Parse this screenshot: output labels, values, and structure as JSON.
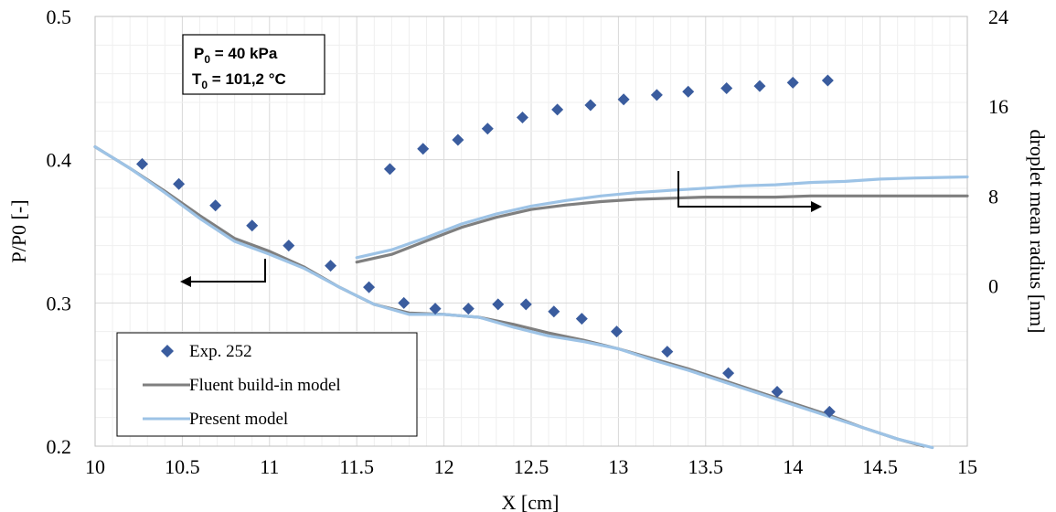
{
  "chart_data": {
    "type": "line",
    "xlabel": "X [cm]",
    "ylabel_left": "P/P0 [-]",
    "ylabel_right": "droplet mean radius [nm]",
    "xlim": [
      10,
      15
    ],
    "ylim_left": [
      0.2,
      0.5
    ],
    "ylim_right": [
      -14.3,
      24
    ],
    "x_ticks": [
      "10",
      "10.5",
      "11",
      "11.5",
      "12",
      "12.5",
      "13",
      "13.5",
      "14",
      "14.5",
      "15"
    ],
    "y_left_ticks": [
      "0.2",
      "0.3",
      "0.4",
      "0.5"
    ],
    "y_right_ticks": [
      "0",
      "8",
      "16",
      "24"
    ],
    "grid": true,
    "annotation": {
      "p0_sym": "P",
      "p0_sub": "0",
      "p0_val": " = 40 kPa",
      "t0_sym": "T",
      "t0_sub": "0",
      "t0_val": " = 101,2 °C"
    },
    "legend": {
      "placement": "bottom-left",
      "entries": [
        "Exp. 252",
        "Fluent build-in model",
        "Present model"
      ]
    },
    "colors": {
      "exp": "#3a5c9e",
      "fluent": "#7f7f7f",
      "present": "#9dc3e6",
      "grid_major": "#d9d9d9",
      "grid_minor": "#efefef"
    },
    "series": [
      {
        "name": "Exp. 252",
        "axis": "left",
        "kind": "scatter",
        "x": [
          10.27,
          10.48,
          10.69,
          10.9,
          11.11,
          11.35,
          11.57,
          11.77,
          11.95,
          12.14,
          12.31,
          12.47,
          12.63,
          12.79,
          12.99,
          13.28,
          13.63,
          13.91,
          14.21
        ],
        "y": [
          0.397,
          0.383,
          0.368,
          0.354,
          0.34,
          0.326,
          0.311,
          0.3,
          0.296,
          0.296,
          0.299,
          0.299,
          0.294,
          0.289,
          0.28,
          0.266,
          0.251,
          0.238,
          0.224
        ]
      },
      {
        "name": "Exp. 252",
        "axis": "right",
        "kind": "scatter",
        "x": [
          11.69,
          11.88,
          12.08,
          12.25,
          12.45,
          12.65,
          12.84,
          13.03,
          13.22,
          13.4,
          13.62,
          13.81,
          14.0,
          14.2
        ],
        "y": [
          10.4,
          12.2,
          13.0,
          14.0,
          15.0,
          15.7,
          16.1,
          16.6,
          17.0,
          17.3,
          17.6,
          17.8,
          18.1,
          18.3
        ]
      },
      {
        "name": "Fluent build-in model",
        "axis": "left",
        "kind": "line",
        "x": [
          10.0,
          10.2,
          10.4,
          10.6,
          10.8,
          11.0,
          11.2,
          11.4,
          11.6,
          11.8,
          12.0,
          12.2,
          12.4,
          12.6,
          12.8,
          13.0,
          13.2,
          13.4,
          13.6,
          13.8,
          14.0,
          14.2,
          14.4,
          14.6,
          14.75
        ],
        "y": [
          0.409,
          0.394,
          0.378,
          0.361,
          0.345,
          0.336,
          0.325,
          0.311,
          0.299,
          0.293,
          0.292,
          0.29,
          0.285,
          0.279,
          0.274,
          0.268,
          0.261,
          0.254,
          0.246,
          0.238,
          0.23,
          0.222,
          0.213,
          0.205,
          0.2
        ]
      },
      {
        "name": "Fluent build-in model",
        "axis": "right",
        "kind": "line",
        "x": [
          11.5,
          11.7,
          11.9,
          12.1,
          12.3,
          12.5,
          12.7,
          12.9,
          13.1,
          13.3,
          13.5,
          13.7,
          13.9,
          14.1,
          14.3,
          14.5,
          14.7,
          15.0
        ],
        "y": [
          2.1,
          2.8,
          4.0,
          5.2,
          6.1,
          6.8,
          7.2,
          7.5,
          7.7,
          7.8,
          7.9,
          7.9,
          7.9,
          8.0,
          8.0,
          8.0,
          8.0,
          8.0
        ]
      },
      {
        "name": "Present model",
        "axis": "left",
        "kind": "line",
        "x": [
          10.0,
          10.2,
          10.4,
          10.6,
          10.8,
          11.0,
          11.2,
          11.4,
          11.6,
          11.8,
          12.0,
          12.2,
          12.4,
          12.6,
          12.8,
          13.0,
          13.2,
          13.4,
          13.6,
          13.8,
          14.0,
          14.2,
          14.4,
          14.6,
          14.8
        ],
        "y": [
          0.409,
          0.394,
          0.377,
          0.359,
          0.343,
          0.334,
          0.324,
          0.311,
          0.299,
          0.292,
          0.292,
          0.29,
          0.283,
          0.277,
          0.273,
          0.268,
          0.26,
          0.253,
          0.245,
          0.237,
          0.229,
          0.221,
          0.213,
          0.205,
          0.199
        ]
      },
      {
        "name": "Present model",
        "axis": "right",
        "kind": "line",
        "x": [
          11.5,
          11.7,
          11.9,
          12.1,
          12.3,
          12.5,
          12.7,
          12.9,
          13.1,
          13.3,
          13.5,
          13.7,
          13.9,
          14.1,
          14.3,
          14.5,
          14.7,
          15.0
        ],
        "y": [
          2.5,
          3.2,
          4.3,
          5.5,
          6.4,
          7.1,
          7.6,
          8.0,
          8.3,
          8.5,
          8.7,
          8.9,
          9.0,
          9.2,
          9.3,
          9.5,
          9.6,
          9.7
        ]
      }
    ]
  }
}
